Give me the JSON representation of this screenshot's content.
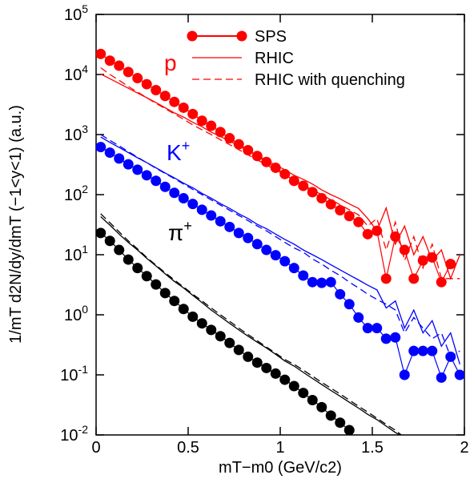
{
  "chart_data": {
    "type": "line",
    "xlabel": "mT−m0 (GeV/c2)",
    "ylabel": "1/mT d2N/dy/dmT (−1<y<1) (a.u.)",
    "yscale": "log",
    "xlim": [
      0,
      2
    ],
    "ylim": [
      0.01,
      100000
    ],
    "xticks": [
      0,
      0.5,
      1,
      1.5,
      2
    ],
    "yticks": [
      {
        "value": 0.01,
        "label": "10^-2"
      },
      {
        "value": 0.1,
        "label": "10^-1"
      },
      {
        "value": 1,
        "label": "10^0"
      },
      {
        "value": 10,
        "label": "10^1"
      },
      {
        "value": 100,
        "label": "10^2"
      },
      {
        "value": 1000,
        "label": "10^3"
      },
      {
        "value": 10000,
        "label": "10^4"
      },
      {
        "value": 100000,
        "label": "10^5"
      }
    ],
    "x": [
      0.025,
      0.075,
      0.125,
      0.175,
      0.225,
      0.275,
      0.325,
      0.375,
      0.425,
      0.475,
      0.525,
      0.575,
      0.625,
      0.675,
      0.725,
      0.775,
      0.825,
      0.875,
      0.925,
      0.975,
      1.025,
      1.075,
      1.125,
      1.175,
      1.225,
      1.275,
      1.325,
      1.375,
      1.425,
      1.475,
      1.525,
      1.575,
      1.625,
      1.675,
      1.725,
      1.775,
      1.825,
      1.875,
      1.925,
      1.975
    ],
    "particles": [
      {
        "label": "p",
        "sup": null,
        "color": "#ff0000"
      },
      {
        "label": "K",
        "sup": "+",
        "color": "#0000ff"
      },
      {
        "label": "π",
        "sup": "+",
        "color": "#000000"
      }
    ],
    "series": [
      {
        "name": "SPS",
        "style": "markers",
        "values": [
          [
            22000,
            17000,
            14000,
            11000,
            8700,
            6900,
            5500,
            4400,
            3500,
            2800,
            2200,
            1700,
            1400,
            1100,
            870,
            690,
            550,
            440,
            350,
            280,
            220,
            170,
            140,
            110,
            87,
            69,
            55,
            44,
            35,
            22,
            25,
            4,
            20,
            12,
            4,
            8,
            9,
            3.5,
            7,
            null
          ],
          [
            620,
            500,
            400,
            320,
            260,
            210,
            170,
            135,
            107,
            87,
            70,
            56,
            45,
            36,
            29,
            23,
            19,
            15,
            12,
            9.8,
            7.8,
            6,
            4.5,
            3.5,
            3.4,
            3.5,
            2.2,
            1.5,
            0.9,
            0.6,
            0.6,
            0.4,
            0.42,
            0.1,
            0.25,
            0.25,
            0.25,
            0.09,
            0.2,
            0.1
          ],
          [
            23,
            17,
            12,
            8.3,
            6,
            4.4,
            3.2,
            2.3,
            1.7,
            1.25,
            0.93,
            0.72,
            0.56,
            0.44,
            0.34,
            0.26,
            0.2,
            0.16,
            0.13,
            0.105,
            0.083,
            0.065,
            0.05,
            0.038,
            0.029,
            0.021,
            0.016,
            0.012,
            null,
            null,
            null,
            null,
            null,
            null,
            null,
            null,
            null,
            null,
            null,
            null
          ]
        ]
      },
      {
        "name": "RHIC",
        "style": "solid",
        "values": [
          [
            10200,
            8500,
            7100,
            5900,
            4900,
            4100,
            3400,
            2800,
            2300,
            1950,
            1600,
            1350,
            1100,
            930,
            780,
            650,
            540,
            450,
            370,
            310,
            260,
            210,
            180,
            150,
            120,
            100,
            85,
            70,
            59,
            40,
            25,
            60,
            15,
            30,
            10,
            20,
            8,
            12,
            4,
            10
          ],
          [
            910,
            740,
            610,
            500,
            410,
            340,
            280,
            230,
            190,
            155,
            130,
            105,
            87,
            71,
            59,
            48,
            40,
            32,
            27,
            22,
            18,
            15,
            12,
            10,
            8.3,
            6.8,
            5.6,
            4.6,
            3.8,
            3.1,
            2.6,
            1.3,
            1.7,
            0.6,
            1.2,
            0.5,
            0.8,
            0.3,
            0.5,
            0.15
          ],
          [
            43,
            31,
            22,
            16,
            12,
            8.7,
            6.5,
            4.8,
            3.6,
            2.8,
            2.1,
            1.6,
            1.2,
            0.93,
            0.72,
            0.56,
            0.44,
            0.35,
            0.28,
            0.22,
            0.17,
            0.14,
            0.11,
            0.087,
            0.069,
            0.055,
            0.044,
            0.035,
            0.028,
            0.022,
            0.018,
            0.014,
            0.011,
            0.009,
            null,
            null,
            null,
            null,
            null,
            null
          ]
        ]
      },
      {
        "name": "RHIC with quenching",
        "style": "dashed",
        "values": [
          [
            13000,
            10000,
            8000,
            6300,
            5100,
            4100,
            3300,
            2700,
            2200,
            1800,
            1450,
            1200,
            1000,
            820,
            680,
            560,
            460,
            380,
            310,
            260,
            210,
            175,
            145,
            120,
            100,
            82,
            68,
            56,
            46,
            30,
            40,
            12,
            35,
            8,
            20,
            6,
            15,
            4,
            4,
            4
          ],
          [
            1000,
            800,
            650,
            520,
            420,
            340,
            275,
            225,
            185,
            150,
            122,
            100,
            82,
            67,
            55,
            45,
            37,
            30,
            25,
            20,
            16,
            13,
            11,
            8.5,
            7,
            5.5,
            4.5,
            3.5,
            2.8,
            2.2,
            1.8,
            1.5,
            1.2,
            0.5,
            0.9,
            0.6,
            0.4,
            0.5,
            0.2,
            0.25
          ],
          [
            48,
            34,
            24,
            17,
            12.5,
            9,
            6.7,
            5,
            3.8,
            2.9,
            2.2,
            1.7,
            1.3,
            1.0,
            0.78,
            0.6,
            0.47,
            0.37,
            0.29,
            0.23,
            0.18,
            0.15,
            0.12,
            0.095,
            0.075,
            0.06,
            0.048,
            0.038,
            0.03,
            0.024,
            0.019,
            0.015,
            0.012,
            0.009,
            null,
            null,
            null,
            null,
            null,
            null
          ]
        ]
      }
    ]
  }
}
